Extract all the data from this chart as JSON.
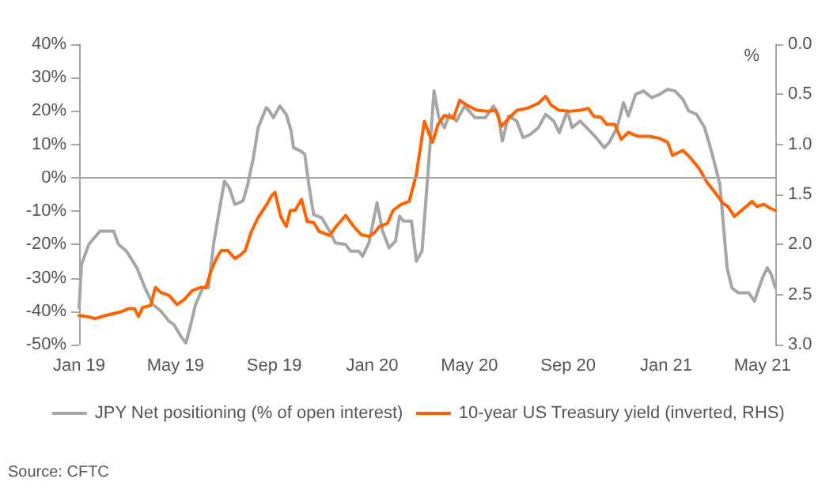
{
  "chart_data": {
    "type": "line",
    "annotations": [
      "Source: CFTC"
    ],
    "y2label": "%",
    "legend": "bottom",
    "marker": "none",
    "line_style": "solid",
    "grid": false,
    "xlim": [
      "2019-01-01",
      "2021-05-17"
    ],
    "xticks": [
      {
        "value": "2019-01-01",
        "label": "Jan 19"
      },
      {
        "value": "2019-05-01",
        "label": "May 19"
      },
      {
        "value": "2019-09-01",
        "label": "Sep 19"
      },
      {
        "value": "2020-01-01",
        "label": "Jan 20"
      },
      {
        "value": "2020-05-01",
        "label": "May 20"
      },
      {
        "value": "2020-09-01",
        "label": "Sep 20"
      },
      {
        "value": "2021-01-01",
        "label": "Jan 21"
      },
      {
        "value": "2021-05-01",
        "label": "May 21"
      }
    ],
    "ylim": [
      -50,
      40
    ],
    "yticks": [
      {
        "value": -50,
        "label": "-50%"
      },
      {
        "value": -40,
        "label": "-40%"
      },
      {
        "value": -30,
        "label": "-30%"
      },
      {
        "value": -20,
        "label": "-20%"
      },
      {
        "value": -10,
        "label": "-10%"
      },
      {
        "value": 0,
        "label": "0%"
      },
      {
        "value": 10,
        "label": "10%"
      },
      {
        "value": 20,
        "label": "20%"
      },
      {
        "value": 30,
        "label": "30%"
      },
      {
        "value": 40,
        "label": "40%"
      }
    ],
    "y2lim": [
      3,
      0
    ],
    "y2ticks": [
      {
        "value": 0,
        "label": "0.0"
      },
      0.5,
      {
        "value": 1,
        "label": "1.0"
      },
      1.5,
      {
        "value": 2,
        "label": "2.0"
      },
      2.5,
      {
        "value": 3,
        "label": "3.0"
      }
    ],
    "ref_lines": [
      {
        "axis": "y",
        "value": 0,
        "color": "#a6a6a6"
      }
    ],
    "series": [
      {
        "name": "JPY Net positioning (% of open interest)",
        "color": "#a6a6a6",
        "x": [
          "2019-01-01",
          "2019-01-04",
          "2019-01-13",
          "2019-01-27",
          "2019-02-13",
          "2019-02-19",
          "2019-03-01",
          "2019-03-14",
          "2019-03-24",
          "2019-04-03",
          "2019-04-13",
          "2019-04-23",
          "2019-04-29",
          "2019-05-09",
          "2019-05-14",
          "2019-05-19",
          "2019-05-26",
          "2019-06-04",
          "2019-06-11",
          "2019-06-18",
          "2019-07-01",
          "2019-07-07",
          "2019-07-14",
          "2019-07-24",
          "2019-07-30",
          "2019-08-06",
          "2019-08-12",
          "2019-08-22",
          "2019-08-26",
          "2019-08-31",
          "2019-09-08",
          "2019-09-16",
          "2019-09-22",
          "2019-09-25",
          "2019-10-04",
          "2019-10-09",
          "2019-10-14",
          "2019-10-20",
          "2019-10-30",
          "2019-11-09",
          "2019-11-16",
          "2019-11-29",
          "2019-12-05",
          "2019-12-15",
          "2019-12-20",
          "2019-12-28",
          "2020-01-07",
          "2020-01-14",
          "2020-01-22",
          "2020-01-30",
          "2020-02-04",
          "2020-02-09",
          "2020-02-19",
          "2020-02-25",
          "2020-03-03",
          "2020-03-10",
          "2020-03-18",
          "2020-03-24",
          "2020-03-31",
          "2020-04-06",
          "2020-04-15",
          "2020-04-25",
          "2020-05-08",
          "2020-05-21",
          "2020-05-31",
          "2020-06-06",
          "2020-06-11",
          "2020-06-19",
          "2020-06-29",
          "2020-07-07",
          "2020-07-16",
          "2020-07-26",
          "2020-08-04",
          "2020-08-14",
          "2020-08-21",
          "2020-08-31",
          "2020-09-06",
          "2020-09-16",
          "2020-09-26",
          "2020-10-06",
          "2020-10-16",
          "2020-10-22",
          "2020-11-01",
          "2020-11-09",
          "2020-11-15",
          "2020-11-24",
          "2020-12-04",
          "2020-12-14",
          "2020-12-24",
          "2021-01-03",
          "2021-01-12",
          "2021-01-22",
          "2021-01-29",
          "2021-02-08",
          "2021-02-18",
          "2021-02-27",
          "2021-03-09",
          "2021-03-13",
          "2021-03-18",
          "2021-03-24",
          "2021-04-01",
          "2021-04-14",
          "2021-04-21",
          "2021-05-01",
          "2021-05-07",
          "2021-05-12",
          "2021-05-17"
        ],
        "values": [
          -39,
          -26,
          -20,
          -16,
          -16,
          -20,
          -22,
          -27,
          -33,
          -38,
          -40,
          -43,
          -44,
          -48,
          -49.5,
          -45,
          -38,
          -33,
          -33,
          -19,
          -1,
          -3,
          -8,
          -7,
          -2,
          6,
          15,
          21,
          20,
          18,
          21.5,
          19,
          14,
          9,
          8,
          7,
          -2,
          -11,
          -12,
          -16,
          -19.5,
          -20,
          -22,
          -22,
          -23.5,
          -19.5,
          -7.5,
          -16,
          -21,
          -19,
          -11.5,
          -13,
          -13,
          -25,
          -22,
          0,
          26,
          18,
          15,
          19,
          17,
          21.5,
          18,
          18,
          21.5,
          19,
          11,
          18.5,
          17,
          12,
          13,
          15,
          19,
          17,
          13.5,
          20,
          15,
          17,
          14.5,
          12,
          9,
          10.5,
          15,
          22.5,
          18.5,
          25,
          26,
          24,
          25,
          26.5,
          26,
          23.5,
          20,
          19,
          15,
          7.5,
          -2,
          -13,
          -27,
          -33,
          -34.5,
          -34.5,
          -37,
          -30,
          -27,
          -29,
          -33
        ]
      },
      {
        "name": "10-year US Treasury yield (inverted, RHS)",
        "color": "#ff6200",
        "axis": "y2",
        "x": [
          "2019-01-01",
          "2019-01-11",
          "2019-01-21",
          "2019-02-03",
          "2019-02-13",
          "2019-02-23",
          "2019-03-04",
          "2019-03-11",
          "2019-03-16",
          "2019-03-21",
          "2019-03-31",
          "2019-04-06",
          "2019-04-13",
          "2019-04-23",
          "2019-05-03",
          "2019-05-12",
          "2019-05-22",
          "2019-06-01",
          "2019-06-08",
          "2019-06-14",
          "2019-06-21",
          "2019-06-27",
          "2019-07-05",
          "2019-07-14",
          "2019-07-20",
          "2019-07-27",
          "2019-08-03",
          "2019-08-12",
          "2019-08-22",
          "2019-08-29",
          "2019-09-02",
          "2019-09-09",
          "2019-09-16",
          "2019-09-21",
          "2019-09-27",
          "2019-10-05",
          "2019-10-12",
          "2019-10-20",
          "2019-10-27",
          "2019-11-09",
          "2019-11-17",
          "2019-11-29",
          "2019-12-09",
          "2019-12-18",
          "2019-12-28",
          "2020-01-04",
          "2020-01-10",
          "2020-01-20",
          "2020-01-27",
          "2020-02-06",
          "2020-02-16",
          "2020-02-25",
          "2020-03-06",
          "2020-03-16",
          "2020-03-23",
          "2020-03-31",
          "2020-04-11",
          "2020-04-19",
          "2020-04-28",
          "2020-05-11",
          "2020-05-24",
          "2020-06-03",
          "2020-06-10",
          "2020-06-19",
          "2020-06-29",
          "2020-07-12",
          "2020-07-26",
          "2020-08-04",
          "2020-08-11",
          "2020-08-21",
          "2020-09-03",
          "2020-09-16",
          "2020-09-26",
          "2020-10-03",
          "2020-10-12",
          "2020-10-19",
          "2020-10-29",
          "2020-11-06",
          "2020-11-15",
          "2020-11-27",
          "2020-12-11",
          "2020-12-24",
          "2021-01-03",
          "2021-01-09",
          "2021-01-22",
          "2021-02-01",
          "2021-02-11",
          "2021-02-21",
          "2021-03-03",
          "2021-03-13",
          "2021-03-19",
          "2021-03-27",
          "2021-04-05",
          "2021-04-18",
          "2021-04-24",
          "2021-05-03",
          "2021-05-11",
          "2021-05-17"
        ],
        "values": [
          2.71,
          2.72,
          2.74,
          2.71,
          2.69,
          2.67,
          2.64,
          2.64,
          2.72,
          2.63,
          2.61,
          2.43,
          2.48,
          2.51,
          2.6,
          2.55,
          2.46,
          2.43,
          2.43,
          2.27,
          2.14,
          2.06,
          2.06,
          2.14,
          2.11,
          2.06,
          1.88,
          1.73,
          1.61,
          1.51,
          1.48,
          1.72,
          1.82,
          1.66,
          1.66,
          1.55,
          1.77,
          1.78,
          1.87,
          1.91,
          1.82,
          1.71,
          1.82,
          1.9,
          1.92,
          1.88,
          1.82,
          1.79,
          1.66,
          1.6,
          1.57,
          1.3,
          0.77,
          0.98,
          0.8,
          0.71,
          0.74,
          0.56,
          0.61,
          0.66,
          0.67,
          0.66,
          0.82,
          0.74,
          0.66,
          0.64,
          0.59,
          0.52,
          0.61,
          0.66,
          0.67,
          0.66,
          0.64,
          0.72,
          0.73,
          0.8,
          0.8,
          0.95,
          0.88,
          0.92,
          0.92,
          0.94,
          0.98,
          1.11,
          1.06,
          1.14,
          1.24,
          1.38,
          1.48,
          1.59,
          1.62,
          1.72,
          1.66,
          1.57,
          1.62,
          1.6,
          1.64,
          1.66
        ]
      }
    ]
  }
}
